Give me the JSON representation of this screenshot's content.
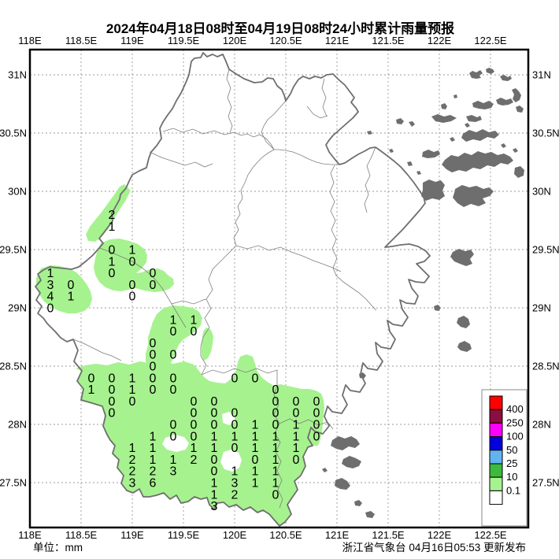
{
  "title": "2024年04月18日08时至04月19日08时24小时累计雨量预报",
  "unit_label": "单位：mm",
  "credit": "浙江省气象台 04月16日05:53 更新发布",
  "axes": {
    "lon_ticks": [
      {
        "label": "118E",
        "value": 118
      },
      {
        "label": "118.5E",
        "value": 118.5
      },
      {
        "label": "119E",
        "value": 119
      },
      {
        "label": "119.5E",
        "value": 119.5
      },
      {
        "label": "120E",
        "value": 120
      },
      {
        "label": "120.5E",
        "value": 120.5
      },
      {
        "label": "121E",
        "value": 121
      },
      {
        "label": "121.5E",
        "value": 121.5
      },
      {
        "label": "122E",
        "value": 122
      },
      {
        "label": "122.5E",
        "value": 122.5
      }
    ],
    "lat_ticks": [
      {
        "label": "31N",
        "value": 31
      },
      {
        "label": "30.5N",
        "value": 30.5
      },
      {
        "label": "30N",
        "value": 30
      },
      {
        "label": "29.5N",
        "value": 29.5
      },
      {
        "label": "29N",
        "value": 29
      },
      {
        "label": "28.5N",
        "value": 28.5
      },
      {
        "label": "28N",
        "value": 28
      },
      {
        "label": "27.5N",
        "value": 27.5
      }
    ],
    "lon_range": [
      118,
      122.869
    ],
    "lat_range": [
      27.115,
      31.216
    ]
  },
  "legend": {
    "labels": [
      "400",
      "250",
      "100",
      "50",
      "25",
      "10",
      "0.1"
    ],
    "colors": [
      "#FF0000",
      "#8C0D3F",
      "#FF00FF",
      "#0000DD",
      "#61B4F0",
      "#3CBA3C",
      "#A6F28F",
      "#FFFFFF"
    ]
  },
  "colors": {
    "rain_light": "#A6F28F",
    "boundary": "#6E6E6E",
    "grid": "#9A9A9A"
  },
  "chart_data": {
    "type": "map-grid",
    "title": "24h accumulated rainfall forecast (mm)",
    "points": [
      {
        "lon": 118.8,
        "lat": 29.8,
        "v": 2
      },
      {
        "lon": 118.8,
        "lat": 29.7,
        "v": 1
      },
      {
        "lon": 118.8,
        "lat": 29.5,
        "v": 0
      },
      {
        "lon": 119.0,
        "lat": 29.5,
        "v": 1
      },
      {
        "lon": 118.8,
        "lat": 29.4,
        "v": 1
      },
      {
        "lon": 119.0,
        "lat": 29.4,
        "v": 0
      },
      {
        "lon": 118.2,
        "lat": 29.3,
        "v": 1
      },
      {
        "lon": 118.8,
        "lat": 29.3,
        "v": 0
      },
      {
        "lon": 119.2,
        "lat": 29.3,
        "v": 0
      },
      {
        "lon": 118.2,
        "lat": 29.2,
        "v": 3
      },
      {
        "lon": 118.4,
        "lat": 29.2,
        "v": 0
      },
      {
        "lon": 119.0,
        "lat": 29.2,
        "v": 0
      },
      {
        "lon": 119.2,
        "lat": 29.2,
        "v": 0
      },
      {
        "lon": 118.2,
        "lat": 29.1,
        "v": 4
      },
      {
        "lon": 118.4,
        "lat": 29.1,
        "v": 1
      },
      {
        "lon": 119.0,
        "lat": 29.1,
        "v": 0
      },
      {
        "lon": 118.2,
        "lat": 29.0,
        "v": 0
      },
      {
        "lon": 119.4,
        "lat": 28.9,
        "v": 1
      },
      {
        "lon": 119.6,
        "lat": 28.9,
        "v": 1
      },
      {
        "lon": 119.4,
        "lat": 28.8,
        "v": 0
      },
      {
        "lon": 119.6,
        "lat": 28.8,
        "v": 0
      },
      {
        "lon": 119.2,
        "lat": 28.7,
        "v": 0
      },
      {
        "lon": 119.2,
        "lat": 28.6,
        "v": 0
      },
      {
        "lon": 119.4,
        "lat": 28.6,
        "v": 0
      },
      {
        "lon": 119.2,
        "lat": 28.5,
        "v": 0
      },
      {
        "lon": 118.6,
        "lat": 28.4,
        "v": 0
      },
      {
        "lon": 118.8,
        "lat": 28.4,
        "v": 0
      },
      {
        "lon": 119.0,
        "lat": 28.4,
        "v": 1
      },
      {
        "lon": 119.2,
        "lat": 28.4,
        "v": 0
      },
      {
        "lon": 119.4,
        "lat": 28.4,
        "v": 0
      },
      {
        "lon": 120.0,
        "lat": 28.4,
        "v": 0
      },
      {
        "lon": 120.2,
        "lat": 28.4,
        "v": 0
      },
      {
        "lon": 118.6,
        "lat": 28.3,
        "v": 1
      },
      {
        "lon": 118.8,
        "lat": 28.3,
        "v": 0
      },
      {
        "lon": 119.0,
        "lat": 28.3,
        "v": 1
      },
      {
        "lon": 119.2,
        "lat": 28.3,
        "v": 0
      },
      {
        "lon": 119.4,
        "lat": 28.3,
        "v": 0
      },
      {
        "lon": 120.4,
        "lat": 28.3,
        "v": 0
      },
      {
        "lon": 118.8,
        "lat": 28.2,
        "v": 0
      },
      {
        "lon": 119.0,
        "lat": 28.2,
        "v": 0
      },
      {
        "lon": 119.6,
        "lat": 28.2,
        "v": 0
      },
      {
        "lon": 119.8,
        "lat": 28.2,
        "v": 0
      },
      {
        "lon": 120.4,
        "lat": 28.2,
        "v": 0
      },
      {
        "lon": 120.6,
        "lat": 28.2,
        "v": 0
      },
      {
        "lon": 120.8,
        "lat": 28.2,
        "v": 0
      },
      {
        "lon": 118.8,
        "lat": 28.1,
        "v": 0
      },
      {
        "lon": 119.6,
        "lat": 28.1,
        "v": 0
      },
      {
        "lon": 119.8,
        "lat": 28.1,
        "v": 0
      },
      {
        "lon": 120.0,
        "lat": 28.1,
        "v": 0
      },
      {
        "lon": 120.4,
        "lat": 28.1,
        "v": 0
      },
      {
        "lon": 120.6,
        "lat": 28.1,
        "v": 0
      },
      {
        "lon": 120.8,
        "lat": 28.1,
        "v": 0
      },
      {
        "lon": 119.4,
        "lat": 28.0,
        "v": 0
      },
      {
        "lon": 119.6,
        "lat": 28.0,
        "v": 0
      },
      {
        "lon": 119.8,
        "lat": 28.0,
        "v": 0
      },
      {
        "lon": 120.0,
        "lat": 28.0,
        "v": 0
      },
      {
        "lon": 120.2,
        "lat": 28.0,
        "v": 1
      },
      {
        "lon": 120.4,
        "lat": 28.0,
        "v": 0
      },
      {
        "lon": 120.6,
        "lat": 28.0,
        "v": 1
      },
      {
        "lon": 120.8,
        "lat": 28.0,
        "v": 0
      },
      {
        "lon": 119.2,
        "lat": 27.9,
        "v": 1
      },
      {
        "lon": 119.4,
        "lat": 27.9,
        "v": 0
      },
      {
        "lon": 119.6,
        "lat": 27.9,
        "v": 0
      },
      {
        "lon": 119.8,
        "lat": 27.9,
        "v": 1
      },
      {
        "lon": 120.0,
        "lat": 27.9,
        "v": 1
      },
      {
        "lon": 120.2,
        "lat": 27.9,
        "v": 1
      },
      {
        "lon": 120.4,
        "lat": 27.9,
        "v": 1
      },
      {
        "lon": 120.6,
        "lat": 27.9,
        "v": 1
      },
      {
        "lon": 120.8,
        "lat": 27.9,
        "v": 0
      },
      {
        "lon": 119.0,
        "lat": 27.8,
        "v": 1
      },
      {
        "lon": 119.2,
        "lat": 27.8,
        "v": 1
      },
      {
        "lon": 119.6,
        "lat": 27.8,
        "v": 1
      },
      {
        "lon": 119.8,
        "lat": 27.8,
        "v": 1
      },
      {
        "lon": 120.0,
        "lat": 27.8,
        "v": 0
      },
      {
        "lon": 120.2,
        "lat": 27.8,
        "v": 1
      },
      {
        "lon": 120.4,
        "lat": 27.8,
        "v": 1
      },
      {
        "lon": 120.6,
        "lat": 27.8,
        "v": 1
      },
      {
        "lon": 119.0,
        "lat": 27.7,
        "v": 2
      },
      {
        "lon": 119.2,
        "lat": 27.7,
        "v": 1
      },
      {
        "lon": 119.4,
        "lat": 27.7,
        "v": 1
      },
      {
        "lon": 119.6,
        "lat": 27.7,
        "v": 2
      },
      {
        "lon": 119.8,
        "lat": 27.7,
        "v": 0
      },
      {
        "lon": 120.2,
        "lat": 27.7,
        "v": 0
      },
      {
        "lon": 120.4,
        "lat": 27.7,
        "v": 1
      },
      {
        "lon": 120.6,
        "lat": 27.7,
        "v": 0
      },
      {
        "lon": 119.0,
        "lat": 27.6,
        "v": 2
      },
      {
        "lon": 119.2,
        "lat": 27.6,
        "v": 2
      },
      {
        "lon": 119.4,
        "lat": 27.6,
        "v": 3
      },
      {
        "lon": 119.8,
        "lat": 27.6,
        "v": 0
      },
      {
        "lon": 120.0,
        "lat": 27.6,
        "v": 1
      },
      {
        "lon": 120.2,
        "lat": 27.6,
        "v": 1
      },
      {
        "lon": 120.4,
        "lat": 27.6,
        "v": 1
      },
      {
        "lon": 119.0,
        "lat": 27.5,
        "v": 3
      },
      {
        "lon": 119.2,
        "lat": 27.5,
        "v": 6
      },
      {
        "lon": 119.8,
        "lat": 27.5,
        "v": 1
      },
      {
        "lon": 120.0,
        "lat": 27.5,
        "v": 3
      },
      {
        "lon": 120.2,
        "lat": 27.5,
        "v": 1
      },
      {
        "lon": 120.4,
        "lat": 27.5,
        "v": 1
      },
      {
        "lon": 119.8,
        "lat": 27.4,
        "v": 1
      },
      {
        "lon": 120.0,
        "lat": 27.4,
        "v": 2
      },
      {
        "lon": 120.4,
        "lat": 27.4,
        "v": 0
      },
      {
        "lon": 119.8,
        "lat": 27.3,
        "v": 3
      }
    ]
  }
}
